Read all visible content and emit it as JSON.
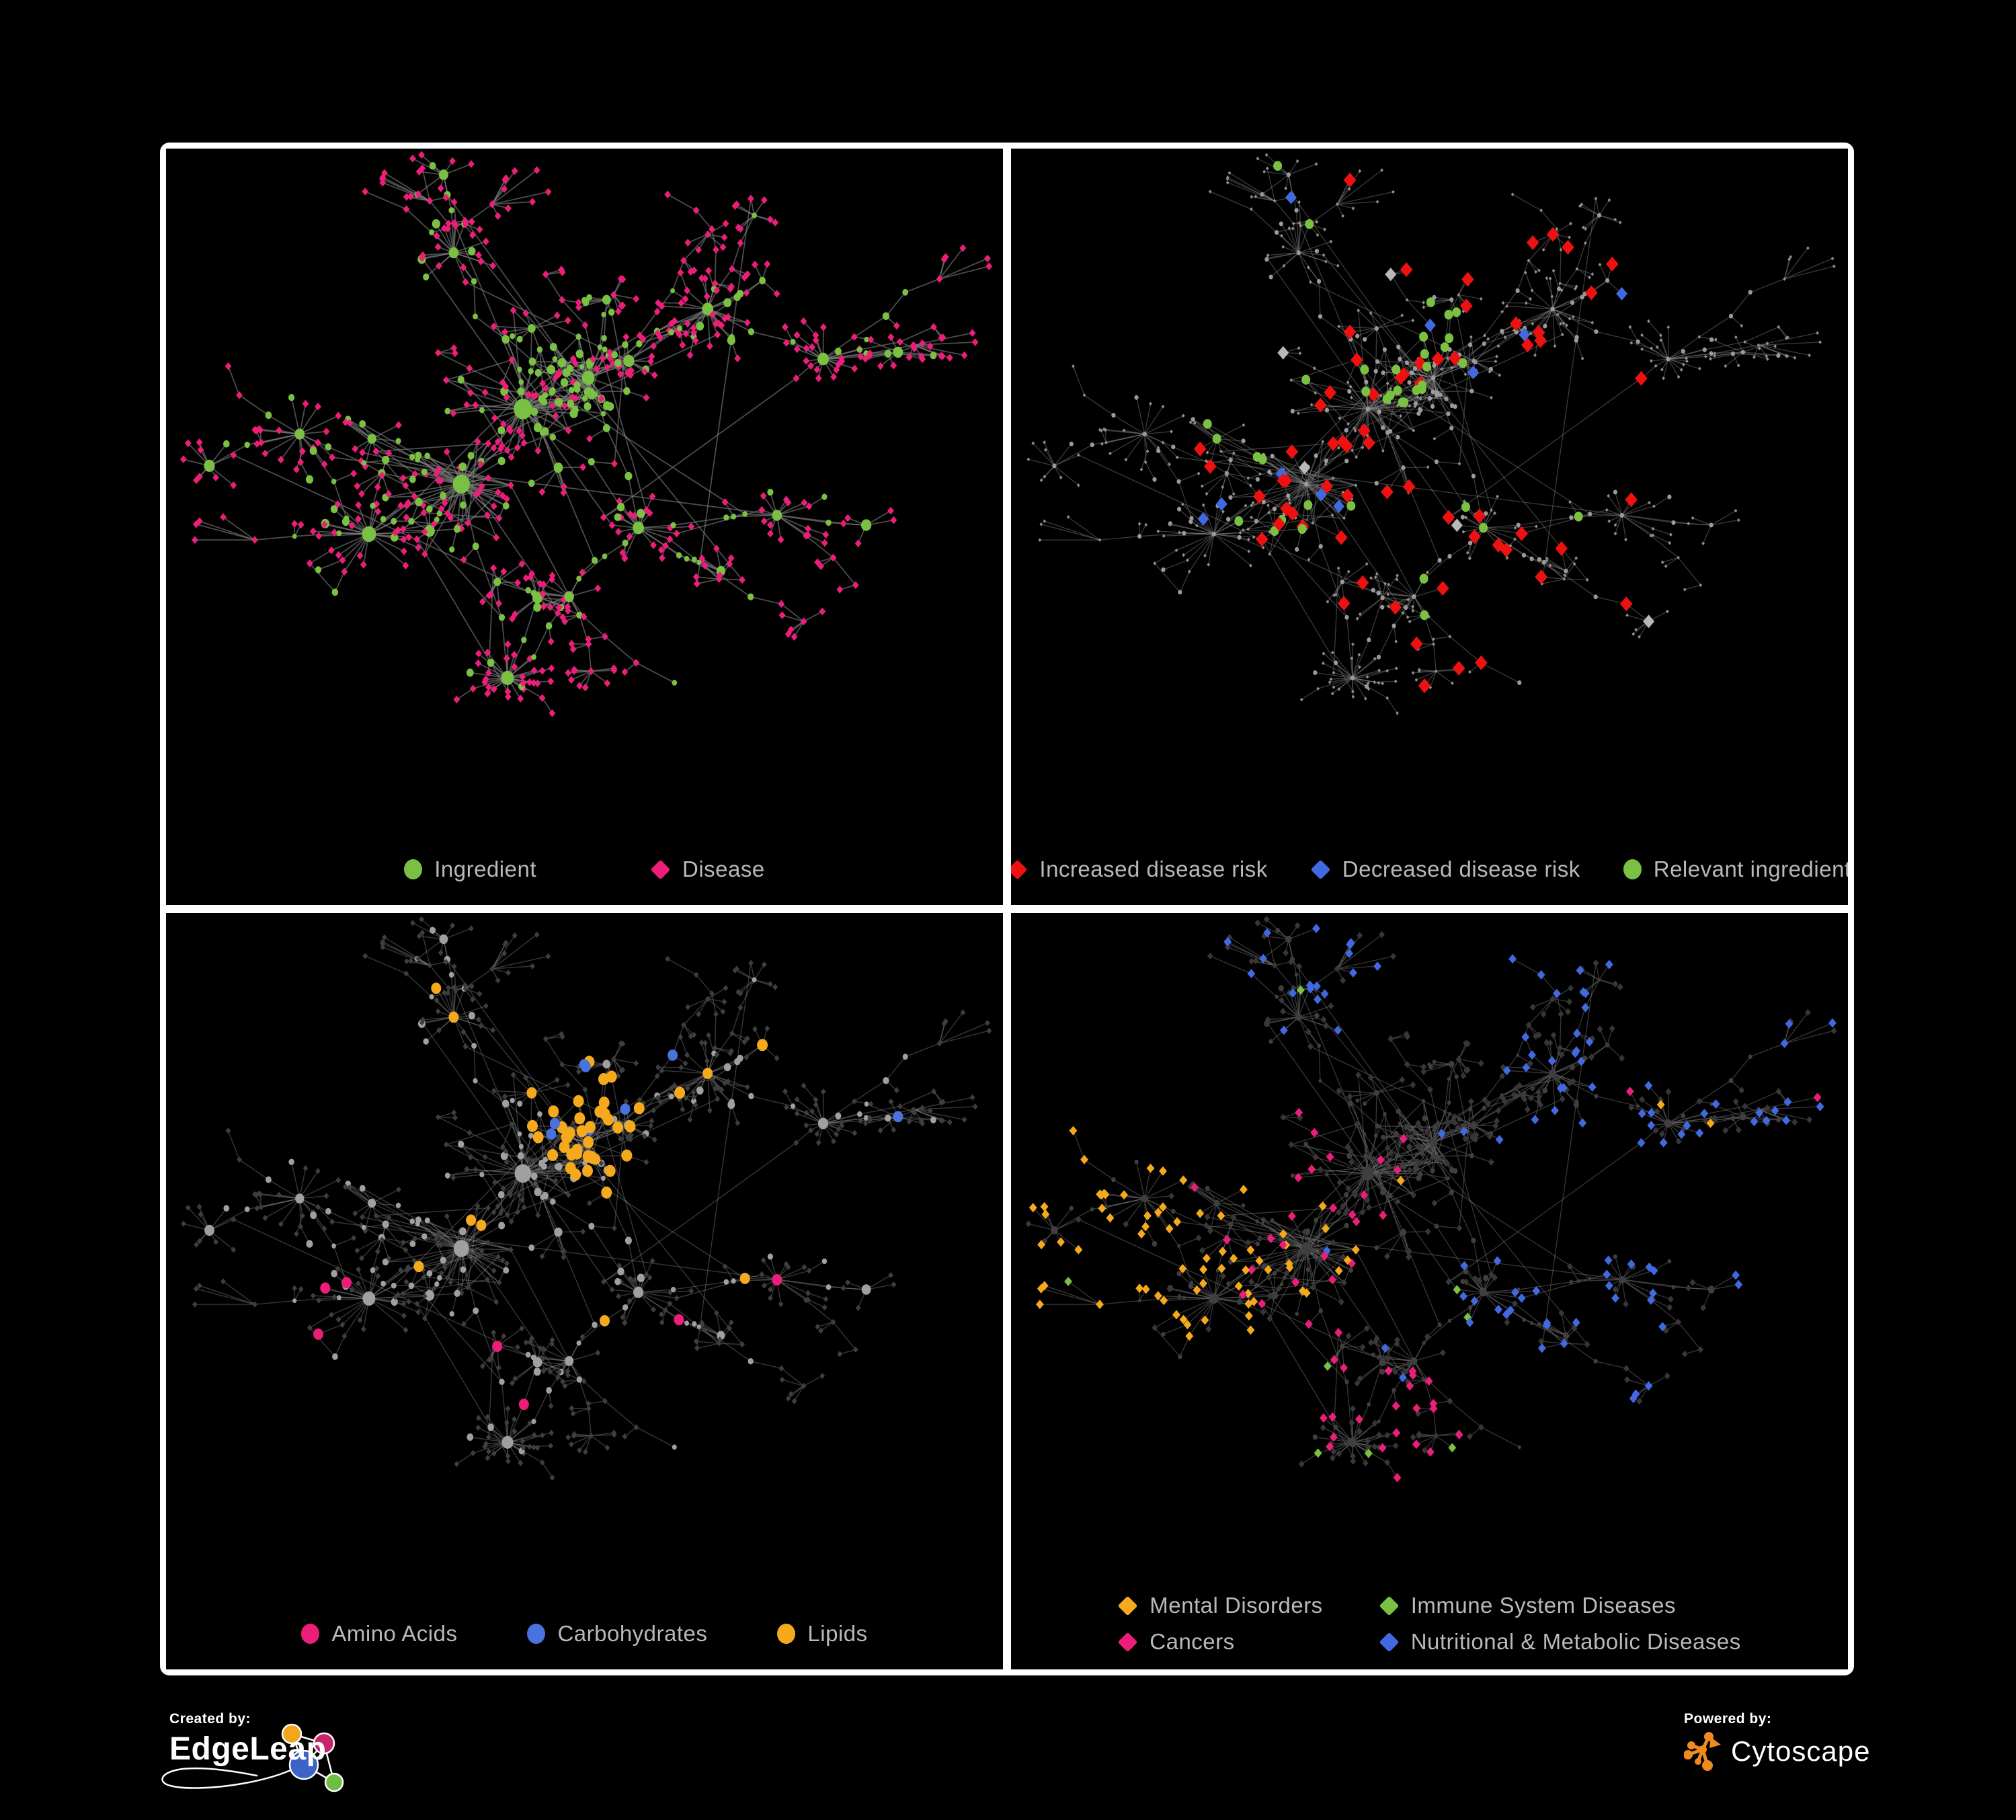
{
  "colors": {
    "background": "#000000",
    "frame": "#ffffff",
    "legend_text": "#b9b9b9",
    "green": "#7AC143",
    "pink": "#EC1E79",
    "red": "#EE1111",
    "blue": "#4169E1",
    "silver": "#b8b8b8",
    "orange": "#F5A91D",
    "carb_blue": "#4A72DC"
  },
  "panels": [
    {
      "id": "ingredient-disease-network",
      "legend": [
        {
          "label": "Ingredient",
          "shape": "circle",
          "color": "#7AC143"
        },
        {
          "label": "Disease",
          "shape": "diamond",
          "color": "#EC1E79"
        }
      ],
      "render": {
        "edge": "#7b7b7b",
        "edgeOp": 0.62,
        "edgeW": 1.8,
        "base": {
          "ingColor": "#7AC143",
          "ingScale": 1.05,
          "disColor": "#EC1E79",
          "disSize": 5.8
        },
        "rules": []
      }
    },
    {
      "id": "disease-risk-network",
      "legend": [
        {
          "label": "Increased disease risk",
          "shape": "diamond",
          "color": "#EE1111"
        },
        {
          "label": "Decreased disease risk",
          "shape": "diamond",
          "color": "#4169E1"
        },
        {
          "label": "Relevant ingredient",
          "shape": "circle",
          "color": "#7AC143"
        }
      ],
      "render": {
        "edge": "#8d8d8d",
        "edgeOp": 0.42,
        "edgeW": 1.3,
        "base": {
          "ingColor": "#9b9b9b",
          "ingFix": 3.1,
          "disColor": "#8f8f8f",
          "disSize": 2.8
        },
        "rules": [
          {
            "kind": "dis",
            "shape": "diamond",
            "color": "#EE1111",
            "size": 11,
            "clusters": [
              0,
              1,
              2,
              7,
              11
            ],
            "p": 0.2,
            "pGlobal": 0.012
          },
          {
            "kind": "dis",
            "shape": "diamond",
            "color": "#4169E1",
            "size": 10,
            "clusters": [
              1,
              2,
              3
            ],
            "p": 0.1,
            "pGlobal": 0.008
          },
          {
            "kind": "dis",
            "shape": "diamond",
            "color": "#b8b8b8",
            "size": 10,
            "clusters": [
              0,
              1,
              2,
              7
            ],
            "p": 0.045,
            "pGlobal": 0
          },
          {
            "kind": "ing",
            "shape": "circle",
            "color": "#7AC143",
            "size": 6.5,
            "clusters": [
              0,
              1,
              2,
              7,
              9
            ],
            "p": 0.3,
            "pGlobal": 0.02
          }
        ]
      }
    },
    {
      "id": "nutrient-class-network",
      "legend": [
        {
          "label": "Amino Acids",
          "shape": "circle",
          "color": "#EC1E79"
        },
        {
          "label": "Carbohydrates",
          "shape": "circle",
          "color": "#4A72DC"
        },
        {
          "label": "Lipids",
          "shape": "circle",
          "color": "#F5A91D"
        }
      ],
      "render": {
        "edge": "#8a8a8a",
        "edgeOp": 0.4,
        "edgeW": 1.4,
        "base": {
          "ingColor": "#a0a0a0",
          "ingScale": 0.95,
          "disColor": "#3e3e3e",
          "disSize": 4.6
        },
        "rules": [
          {
            "kind": "ing",
            "shape": "circle",
            "color": "#F5A91D",
            "size": 8,
            "clusters": [
              2
            ],
            "p": 0.8,
            "pGlobal": 0
          },
          {
            "kind": "ing",
            "shape": "circle",
            "color": "#F5A91D",
            "size": 7.5,
            "clusters": [
              0,
              9
            ],
            "p": 0.16,
            "pGlobal": 0.012
          },
          {
            "kind": "ing",
            "shape": "circle",
            "color": "#4A72DC",
            "size": 7.5,
            "clusters": [
              2
            ],
            "p": 0.35,
            "pGlobal": 0.01
          },
          {
            "kind": "ing",
            "shape": "circle",
            "color": "#EC1E79",
            "size": 7.5,
            "clusters": [
              3,
              4,
              7,
              10,
              11
            ],
            "p": 0.15,
            "pGlobal": 0.012
          }
        ]
      }
    },
    {
      "id": "disease-category-network",
      "legend": [
        {
          "label": "Mental Disorders",
          "shape": "diamond",
          "color": "#F5A91D"
        },
        {
          "label": "Immune System Diseases",
          "shape": "diamond",
          "color": "#7AC143"
        },
        {
          "label": "Cancers",
          "shape": "diamond",
          "color": "#EC1E79"
        },
        {
          "label": "Nutritional & Metabolic Diseases",
          "shape": "diamond",
          "color": "#4169E1"
        }
      ],
      "render": {
        "edge": "#6f6f6f",
        "edgeOp": 0.5,
        "edgeW": 1.3,
        "base": {
          "ingColor": "#3f3f3f",
          "ingScale": 0.7,
          "disColor": "#373737",
          "disSize": 5.2
        },
        "rules": [
          {
            "kind": "dis",
            "shape": "diamond",
            "color": "#F5A91D",
            "size": 7,
            "clusters": [
              3,
              8
            ],
            "p": 0.8,
            "pGlobal": 0
          },
          {
            "kind": "dis",
            "shape": "diamond",
            "color": "#F5A91D",
            "size": 7,
            "clusters": [
              1
            ],
            "p": 0.22,
            "pGlobal": 0.008
          },
          {
            "kind": "dis",
            "shape": "diamond",
            "color": "#EC1E79",
            "size": 7,
            "clusters": [
              0,
              1,
              4,
              11
            ],
            "p": 0.3,
            "pGlobal": 0.006
          },
          {
            "kind": "dis",
            "shape": "diamond",
            "color": "#4169E1",
            "size": 7,
            "clusters": [
              5,
              6,
              7,
              9,
              10
            ],
            "p": 0.42,
            "pGlobal": 0.03
          },
          {
            "kind": "dis",
            "shape": "diamond",
            "color": "#7AC143",
            "size": 7,
            "p": 0.025
          }
        ]
      }
    }
  ],
  "footer": {
    "created_by": "Created by:",
    "brand_left": "EdgeLeap",
    "powered_by": "Powered by:",
    "brand_right": "Cytoscape"
  }
}
